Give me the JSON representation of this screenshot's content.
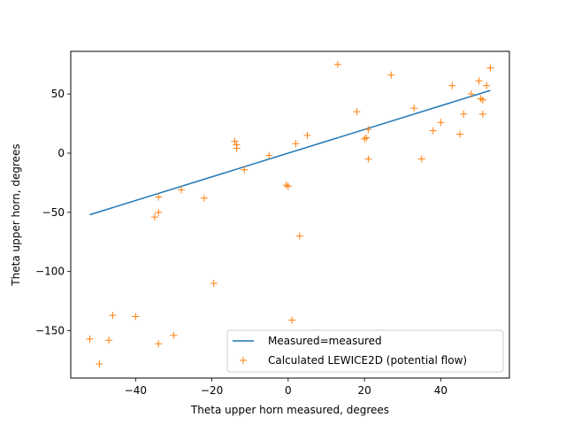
{
  "chart_data": {
    "type": "scatter",
    "title": "",
    "xlabel": "Theta upper horn measured, degrees",
    "ylabel": "Theta upper horn, degrees",
    "xlim": [
      -57,
      58
    ],
    "ylim": [
      -190,
      86
    ],
    "xticks": [
      -40,
      -20,
      0,
      20,
      40
    ],
    "yticks": [
      -150,
      -100,
      -50,
      0,
      50
    ],
    "grid": false,
    "legend_position": "lower-right",
    "series": [
      {
        "name": "Measured=measured",
        "kind": "line",
        "color": "#1f77b4",
        "x": [
          -52,
          53
        ],
        "y": [
          -52,
          53
        ]
      },
      {
        "name": "Calculated LEWICE2D (potential flow)",
        "kind": "marker",
        "marker": "+",
        "color": "#ff7f0e",
        "x": [
          -52,
          -49.5,
          -47,
          -46,
          -40,
          -35,
          -34,
          -34,
          -34,
          -30,
          -28,
          -22,
          -19.5,
          -14,
          -13.5,
          -13.5,
          -11.5,
          -5,
          -0.5,
          0,
          1,
          2,
          3,
          5,
          13,
          18,
          20,
          20.5,
          21,
          21,
          27,
          33,
          35,
          38,
          40,
          43,
          45,
          46,
          48,
          50,
          50.5,
          51,
          51,
          52,
          53
        ],
        "y": [
          -157,
          -178,
          -158,
          -137,
          -138,
          -54,
          -50,
          -37,
          -161,
          -154,
          -31,
          -38,
          -110,
          10,
          7,
          4,
          -14,
          -2,
          -27,
          -28,
          -141,
          8,
          -70,
          15,
          75,
          35,
          12,
          13,
          -5,
          20,
          66,
          38,
          -5,
          19,
          26,
          57,
          16,
          33,
          50,
          61,
          46,
          45,
          33,
          57,
          72
        ]
      }
    ],
    "legend": [
      "Measured=measured",
      "Calculated LEWICE2D (potential flow)"
    ]
  }
}
